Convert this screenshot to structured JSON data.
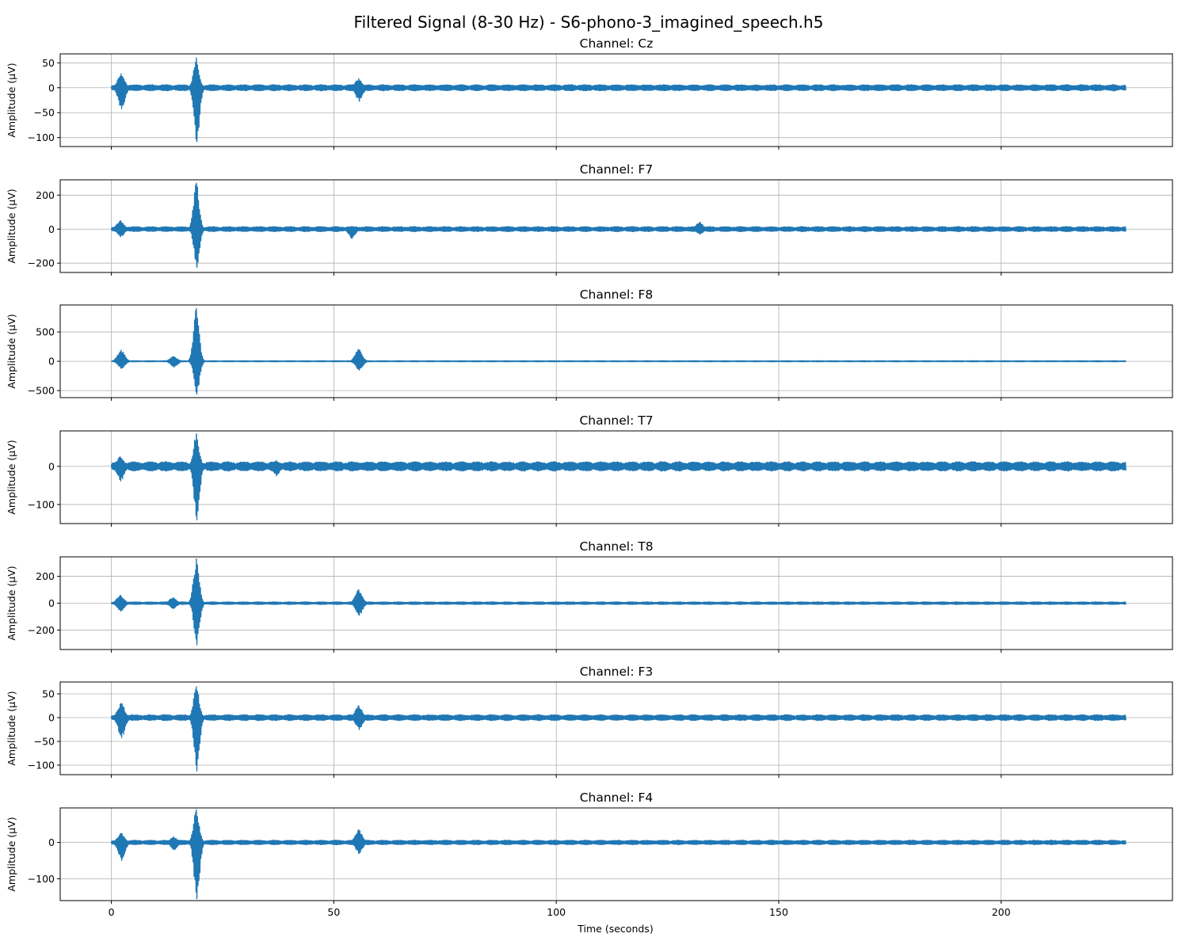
{
  "chart_data": {
    "type": "line",
    "title": "Filtered Signal (8-30 Hz) - S6-phono-3_imagined_speech.h5",
    "xlabel": "Time (seconds)",
    "xlim": [
      -11.5,
      238.5
    ],
    "xticks": [
      0,
      50,
      100,
      150,
      200
    ],
    "x_range": [
      0,
      228
    ],
    "grid": true,
    "color": "#1f77b4",
    "panels": [
      {
        "title": "Channel: Cz",
        "ylabel": "Amplitude (µV)",
        "ylim": [
          -118,
          68
        ],
        "yticks": [
          50,
          0,
          -50,
          -100
        ],
        "baseline_amplitude": 5,
        "events": [
          {
            "t": 2.2,
            "max": 28,
            "min": -42
          },
          {
            "t": 19.1,
            "max": 60,
            "min": -108
          },
          {
            "t": 55.6,
            "max": 18,
            "min": -27
          }
        ]
      },
      {
        "title": "Channel: F7",
        "ylabel": "Amplitude (µV)",
        "ylim": [
          -255,
          290
        ],
        "yticks": [
          200,
          0,
          -200
        ],
        "baseline_amplitude": 12,
        "events": [
          {
            "t": 2.0,
            "max": 50,
            "min": -45
          },
          {
            "t": 19.1,
            "max": 270,
            "min": -225
          },
          {
            "t": 54.0,
            "max": 15,
            "min": -55
          },
          {
            "t": 132.2,
            "max": 40,
            "min": -30
          }
        ]
      },
      {
        "title": "Channel: F8",
        "ylabel": "Amplitude (µV)",
        "ylim": [
          -620,
          960
        ],
        "yticks": [
          500,
          0,
          -500
        ],
        "baseline_amplitude": 8,
        "events": [
          {
            "t": 2.2,
            "max": 190,
            "min": -120
          },
          {
            "t": 14.0,
            "max": 80,
            "min": -100
          },
          {
            "t": 19.1,
            "max": 900,
            "min": -560
          },
          {
            "t": 55.6,
            "max": 200,
            "min": -150
          }
        ]
      },
      {
        "title": "Channel: T7",
        "ylabel": "Amplitude (µV)",
        "ylim": [
          -150,
          93
        ],
        "yticks": [
          0,
          -100
        ],
        "baseline_amplitude": 10,
        "events": [
          {
            "t": 2.0,
            "max": 25,
            "min": -38
          },
          {
            "t": 19.1,
            "max": 85,
            "min": -140
          },
          {
            "t": 37.0,
            "max": 15,
            "min": -25
          }
        ]
      },
      {
        "title": "Channel: T8",
        "ylabel": "Amplitude (µV)",
        "ylim": [
          -345,
          345
        ],
        "yticks": [
          200,
          0,
          -200
        ],
        "baseline_amplitude": 8,
        "events": [
          {
            "t": 2.0,
            "max": 60,
            "min": -60
          },
          {
            "t": 13.8,
            "max": 40,
            "min": -40
          },
          {
            "t": 19.1,
            "max": 330,
            "min": -310
          },
          {
            "t": 55.6,
            "max": 100,
            "min": -90
          }
        ]
      },
      {
        "title": "Channel: F3",
        "ylabel": "Amplitude (µV)",
        "ylim": [
          -120,
          75
        ],
        "yticks": [
          50,
          0,
          -50,
          -100
        ],
        "baseline_amplitude": 5,
        "events": [
          {
            "t": 2.2,
            "max": 30,
            "min": -42
          },
          {
            "t": 19.1,
            "max": 65,
            "min": -112
          },
          {
            "t": 55.6,
            "max": 25,
            "min": -25
          }
        ]
      },
      {
        "title": "Channel: F4",
        "ylabel": "Amplitude (µV)",
        "ylim": [
          -160,
          95
        ],
        "yticks": [
          0,
          -100
        ],
        "baseline_amplitude": 5,
        "events": [
          {
            "t": 2.2,
            "max": 25,
            "min": -50
          },
          {
            "t": 14.0,
            "max": 15,
            "min": -20
          },
          {
            "t": 19.1,
            "max": 90,
            "min": -155
          },
          {
            "t": 55.6,
            "max": 35,
            "min": -30
          }
        ]
      }
    ]
  }
}
